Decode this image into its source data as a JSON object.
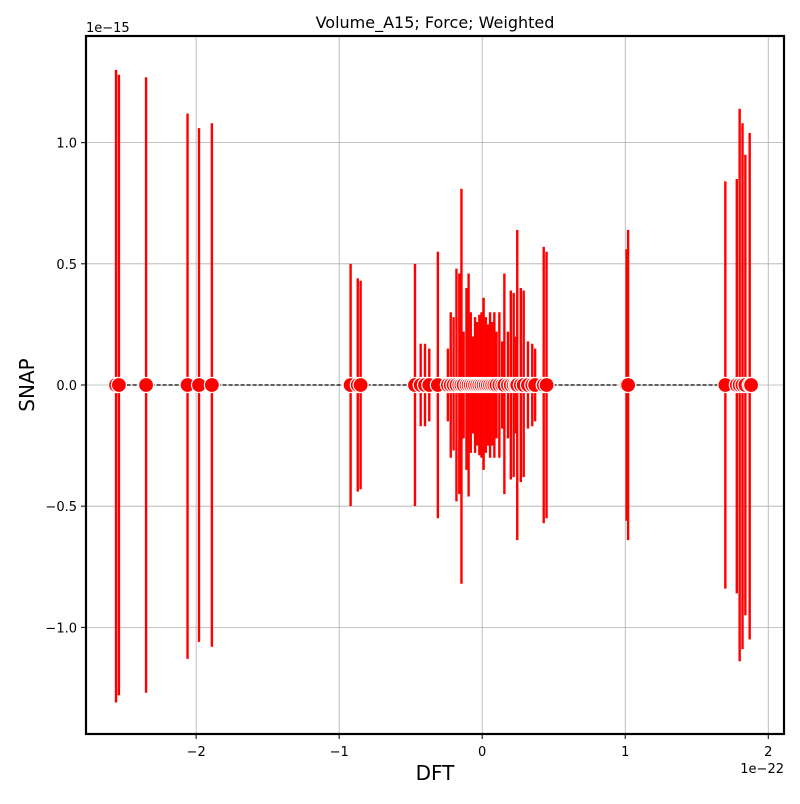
{
  "chart_data": {
    "type": "scatter",
    "title": "Volume_A15; Force; Weighted",
    "xlabel": "DFT",
    "ylabel": "SNAP",
    "x_offset_label": "1e−22",
    "y_offset_label": "1e−15",
    "x_scale_exponent": -22,
    "y_scale_exponent": -15,
    "xlim": [
      -2.77,
      2.11
    ],
    "ylim": [
      -1.44,
      1.44
    ],
    "x_ticks": [
      -2,
      -1,
      0,
      1,
      2
    ],
    "x_tick_labels": [
      "−2",
      "−1",
      "0",
      "1",
      "2"
    ],
    "y_ticks": [
      -1.0,
      -0.5,
      0.0,
      0.5,
      1.0
    ],
    "y_tick_labels": [
      "−1.0",
      "−0.5",
      "0.0",
      "0.5",
      "1.0"
    ],
    "grid": true,
    "reference_line": {
      "style": "dashed",
      "color": "#000000",
      "from": [
        -2.57,
        0
      ],
      "to": [
        1.9,
        0
      ]
    },
    "marker_color": "#ff0000",
    "errorbar_color": "#ff0000",
    "points": [
      {
        "x": -2.56,
        "y": 0,
        "err_lo": -1.31,
        "err_hi": 1.3
      },
      {
        "x": -2.54,
        "y": 0,
        "err_lo": -1.28,
        "err_hi": 1.28
      },
      {
        "x": -2.35,
        "y": 0,
        "err_lo": -1.27,
        "err_hi": 1.27
      },
      {
        "x": -2.06,
        "y": 0,
        "err_lo": -1.13,
        "err_hi": 1.12
      },
      {
        "x": -1.98,
        "y": 0,
        "err_lo": -1.06,
        "err_hi": 1.06
      },
      {
        "x": -1.89,
        "y": 0,
        "err_lo": -1.08,
        "err_hi": 1.08
      },
      {
        "x": -0.92,
        "y": 0,
        "err_lo": -0.5,
        "err_hi": 0.5
      },
      {
        "x": -0.87,
        "y": 0,
        "err_lo": -0.44,
        "err_hi": 0.44
      },
      {
        "x": -0.85,
        "y": 0,
        "err_lo": -0.43,
        "err_hi": 0.43
      },
      {
        "x": -0.47,
        "y": 0,
        "err_lo": -0.5,
        "err_hi": 0.5
      },
      {
        "x": -0.43,
        "y": 0,
        "err_lo": -0.17,
        "err_hi": 0.17
      },
      {
        "x": -0.4,
        "y": 0,
        "err_lo": -0.17,
        "err_hi": 0.17
      },
      {
        "x": -0.37,
        "y": 0,
        "err_lo": -0.15,
        "err_hi": 0.15
      },
      {
        "x": -0.31,
        "y": 0,
        "err_lo": -0.55,
        "err_hi": 0.55
      },
      {
        "x": -0.24,
        "y": 0,
        "err_lo": -0.15,
        "err_hi": 0.15
      },
      {
        "x": -0.22,
        "y": 0,
        "err_lo": -0.3,
        "err_hi": 0.3
      },
      {
        "x": -0.2,
        "y": 0,
        "err_lo": -0.27,
        "err_hi": 0.28
      },
      {
        "x": -0.18,
        "y": 0,
        "err_lo": -0.48,
        "err_hi": 0.48
      },
      {
        "x": -0.16,
        "y": 0,
        "err_lo": -0.45,
        "err_hi": 0.46
      },
      {
        "x": -0.145,
        "y": 0,
        "err_lo": -0.82,
        "err_hi": 0.81
      },
      {
        "x": -0.13,
        "y": 0,
        "err_lo": -0.22,
        "err_hi": 0.22
      },
      {
        "x": -0.11,
        "y": 0,
        "err_lo": -0.35,
        "err_hi": 0.4
      },
      {
        "x": -0.095,
        "y": 0,
        "err_lo": -0.46,
        "err_hi": 0.46
      },
      {
        "x": -0.08,
        "y": 0,
        "err_lo": -0.28,
        "err_hi": 0.3
      },
      {
        "x": -0.065,
        "y": 0,
        "err_lo": -0.2,
        "err_hi": 0.2
      },
      {
        "x": -0.05,
        "y": 0,
        "err_lo": -0.28,
        "err_hi": 0.28
      },
      {
        "x": -0.035,
        "y": 0,
        "err_lo": -0.25,
        "err_hi": 0.26
      },
      {
        "x": -0.02,
        "y": 0,
        "err_lo": -0.29,
        "err_hi": 0.29
      },
      {
        "x": -0.005,
        "y": 0,
        "err_lo": -0.3,
        "err_hi": 0.3
      },
      {
        "x": 0.01,
        "y": 0,
        "err_lo": -0.35,
        "err_hi": 0.36
      },
      {
        "x": 0.025,
        "y": 0,
        "err_lo": -0.28,
        "err_hi": 0.28
      },
      {
        "x": 0.04,
        "y": 0,
        "err_lo": -0.25,
        "err_hi": 0.25
      },
      {
        "x": 0.055,
        "y": 0,
        "err_lo": -0.3,
        "err_hi": 0.3
      },
      {
        "x": 0.07,
        "y": 0,
        "err_lo": -0.25,
        "err_hi": 0.26
      },
      {
        "x": 0.085,
        "y": 0,
        "err_lo": -0.3,
        "err_hi": 0.3
      },
      {
        "x": 0.1,
        "y": 0,
        "err_lo": -0.22,
        "err_hi": 0.22
      },
      {
        "x": 0.12,
        "y": 0,
        "err_lo": -0.3,
        "err_hi": 0.3
      },
      {
        "x": 0.14,
        "y": 0,
        "err_lo": -0.18,
        "err_hi": 0.18
      },
      {
        "x": 0.155,
        "y": 0,
        "err_lo": -0.45,
        "err_hi": 0.46
      },
      {
        "x": 0.18,
        "y": 0,
        "err_lo": -0.22,
        "err_hi": 0.22
      },
      {
        "x": 0.2,
        "y": 0,
        "err_lo": -0.39,
        "err_hi": 0.39
      },
      {
        "x": 0.22,
        "y": 0,
        "err_lo": -0.38,
        "err_hi": 0.38
      },
      {
        "x": 0.235,
        "y": 0,
        "err_lo": -0.2,
        "err_hi": 0.2
      },
      {
        "x": 0.245,
        "y": 0,
        "err_lo": -0.64,
        "err_hi": 0.64
      },
      {
        "x": 0.27,
        "y": 0,
        "err_lo": -0.4,
        "err_hi": 0.4
      },
      {
        "x": 0.29,
        "y": 0,
        "err_lo": -0.38,
        "err_hi": 0.39
      },
      {
        "x": 0.32,
        "y": 0,
        "err_lo": -0.18,
        "err_hi": 0.18
      },
      {
        "x": 0.35,
        "y": 0,
        "err_lo": -0.17,
        "err_hi": 0.17
      },
      {
        "x": 0.37,
        "y": 0,
        "err_lo": -0.15,
        "err_hi": 0.15
      },
      {
        "x": 0.43,
        "y": 0,
        "err_lo": -0.57,
        "err_hi": 0.57
      },
      {
        "x": 0.45,
        "y": 0,
        "err_lo": -0.55,
        "err_hi": 0.55
      },
      {
        "x": 1.01,
        "y": 0,
        "err_lo": -0.56,
        "err_hi": 0.56
      },
      {
        "x": 1.02,
        "y": 0,
        "err_lo": -0.64,
        "err_hi": 0.64
      },
      {
        "x": 1.7,
        "y": 0,
        "err_lo": -0.84,
        "err_hi": 0.84
      },
      {
        "x": 1.78,
        "y": 0,
        "err_lo": -0.86,
        "err_hi": 0.85
      },
      {
        "x": 1.8,
        "y": 0,
        "err_lo": -1.14,
        "err_hi": 1.14
      },
      {
        "x": 1.82,
        "y": 0,
        "err_lo": -1.09,
        "err_hi": 1.08
      },
      {
        "x": 1.84,
        "y": 0,
        "err_lo": -0.95,
        "err_hi": 0.95
      },
      {
        "x": 1.87,
        "y": 0,
        "err_lo": -1.05,
        "err_hi": 1.04
      },
      {
        "x": 1.88,
        "y": 0,
        "err_lo": 0.0,
        "err_hi": 0.0
      }
    ]
  }
}
